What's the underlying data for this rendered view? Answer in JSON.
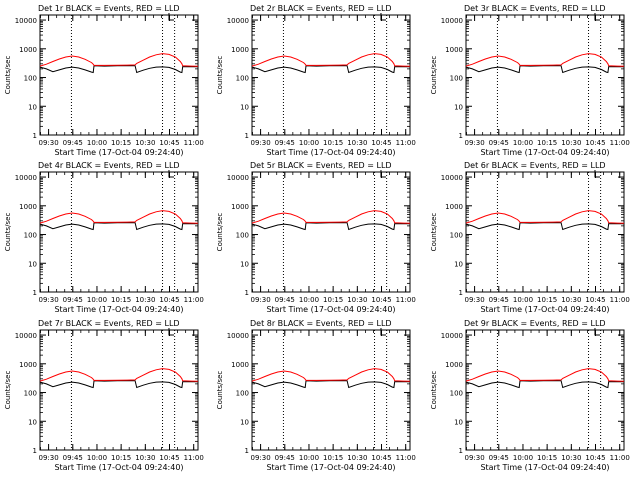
{
  "chart_data": [
    {
      "type": "line",
      "title": "Det 1r BLACK = Events, RED = LLD",
      "xlabel": "Start Time (17-Oct-04 09:24:40)",
      "ylabel": "Counts/sec"
    },
    {
      "type": "line",
      "title": "Det 2r BLACK = Events, RED = LLD",
      "xlabel": "Start Time (17-Oct-04 09:24:40)",
      "ylabel": "Counts/sec"
    },
    {
      "type": "line",
      "title": "Det 3r BLACK = Events, RED = LLD",
      "xlabel": "Start Time (17-Oct-04 09:24:40)",
      "ylabel": "Counts/sec"
    },
    {
      "type": "line",
      "title": "Det 4r BLACK = Events, RED = LLD",
      "xlabel": "Start Time (17-Oct-04 09:24:40)",
      "ylabel": "Counts/sec"
    },
    {
      "type": "line",
      "title": "Det 5r BLACK = Events, RED = LLD",
      "xlabel": "Start Time (17-Oct-04 09:24:40)",
      "ylabel": "Counts/sec"
    },
    {
      "type": "line",
      "title": "Det 6r BLACK = Events, RED = LLD",
      "xlabel": "Start Time (17-Oct-04 09:24:40)",
      "ylabel": "Counts/sec"
    },
    {
      "type": "line",
      "title": "Det 7r BLACK = Events, RED = LLD",
      "xlabel": "Start Time (17-Oct-04 09:24:40)",
      "ylabel": "Counts/sec"
    },
    {
      "type": "line",
      "title": "Det 8r BLACK = Events, RED = LLD",
      "xlabel": "Start Time (17-Oct-04 09:24:40)",
      "ylabel": "Counts/sec"
    },
    {
      "type": "line",
      "title": "Det 9r BLACK = Events, RED = LLD",
      "xlabel": "Start Time (17-Oct-04 09:24:40)",
      "ylabel": "Counts/sec"
    }
  ],
  "shared": {
    "x_ticks": [
      "09:30",
      "09:45",
      "10:00",
      "10:15",
      "10:30",
      "10:45",
      "11:00"
    ],
    "x_tick_minutes": [
      5.33,
      20.33,
      35.33,
      50.33,
      65.33,
      80.33,
      95.33
    ],
    "xlim_minutes": [
      0,
      98
    ],
    "y_ticks": [
      "1",
      "10",
      "100",
      "1000",
      "10000"
    ],
    "ylim": [
      1,
      15000
    ],
    "y_scale": "log",
    "vlines_minutes": [
      19.5,
      76,
      83.5
    ],
    "marker_minutes": 80,
    "grid": false,
    "series": [
      {
        "role": "events",
        "color": "#000000",
        "x": [
          0,
          4,
          8,
          12,
          16,
          20,
          24,
          28,
          32,
          33,
          33.5,
          40,
          48,
          54,
          59,
          60,
          64,
          68,
          72,
          76,
          80,
          84,
          87,
          88,
          88.5,
          94,
          98
        ],
        "y": [
          230,
          200,
          160,
          185,
          215,
          230,
          215,
          185,
          155,
          150,
          255,
          250,
          255,
          255,
          258,
          150,
          180,
          210,
          230,
          235,
          225,
          190,
          155,
          150,
          240,
          238,
          238
        ]
      },
      {
        "role": "lld",
        "color": "#ff0000",
        "x": [
          0,
          4,
          8,
          12,
          16,
          20,
          24,
          28,
          32,
          33,
          33.5,
          40,
          48,
          54,
          59,
          60,
          64,
          68,
          72,
          76,
          80,
          84,
          87,
          88,
          88.5,
          94,
          98
        ],
        "y": [
          250,
          290,
          360,
          440,
          520,
          560,
          520,
          430,
          330,
          290,
          265,
          265,
          268,
          270,
          275,
          310,
          400,
          520,
          620,
          680,
          640,
          520,
          360,
          300,
          255,
          250,
          248
        ]
      }
    ]
  }
}
